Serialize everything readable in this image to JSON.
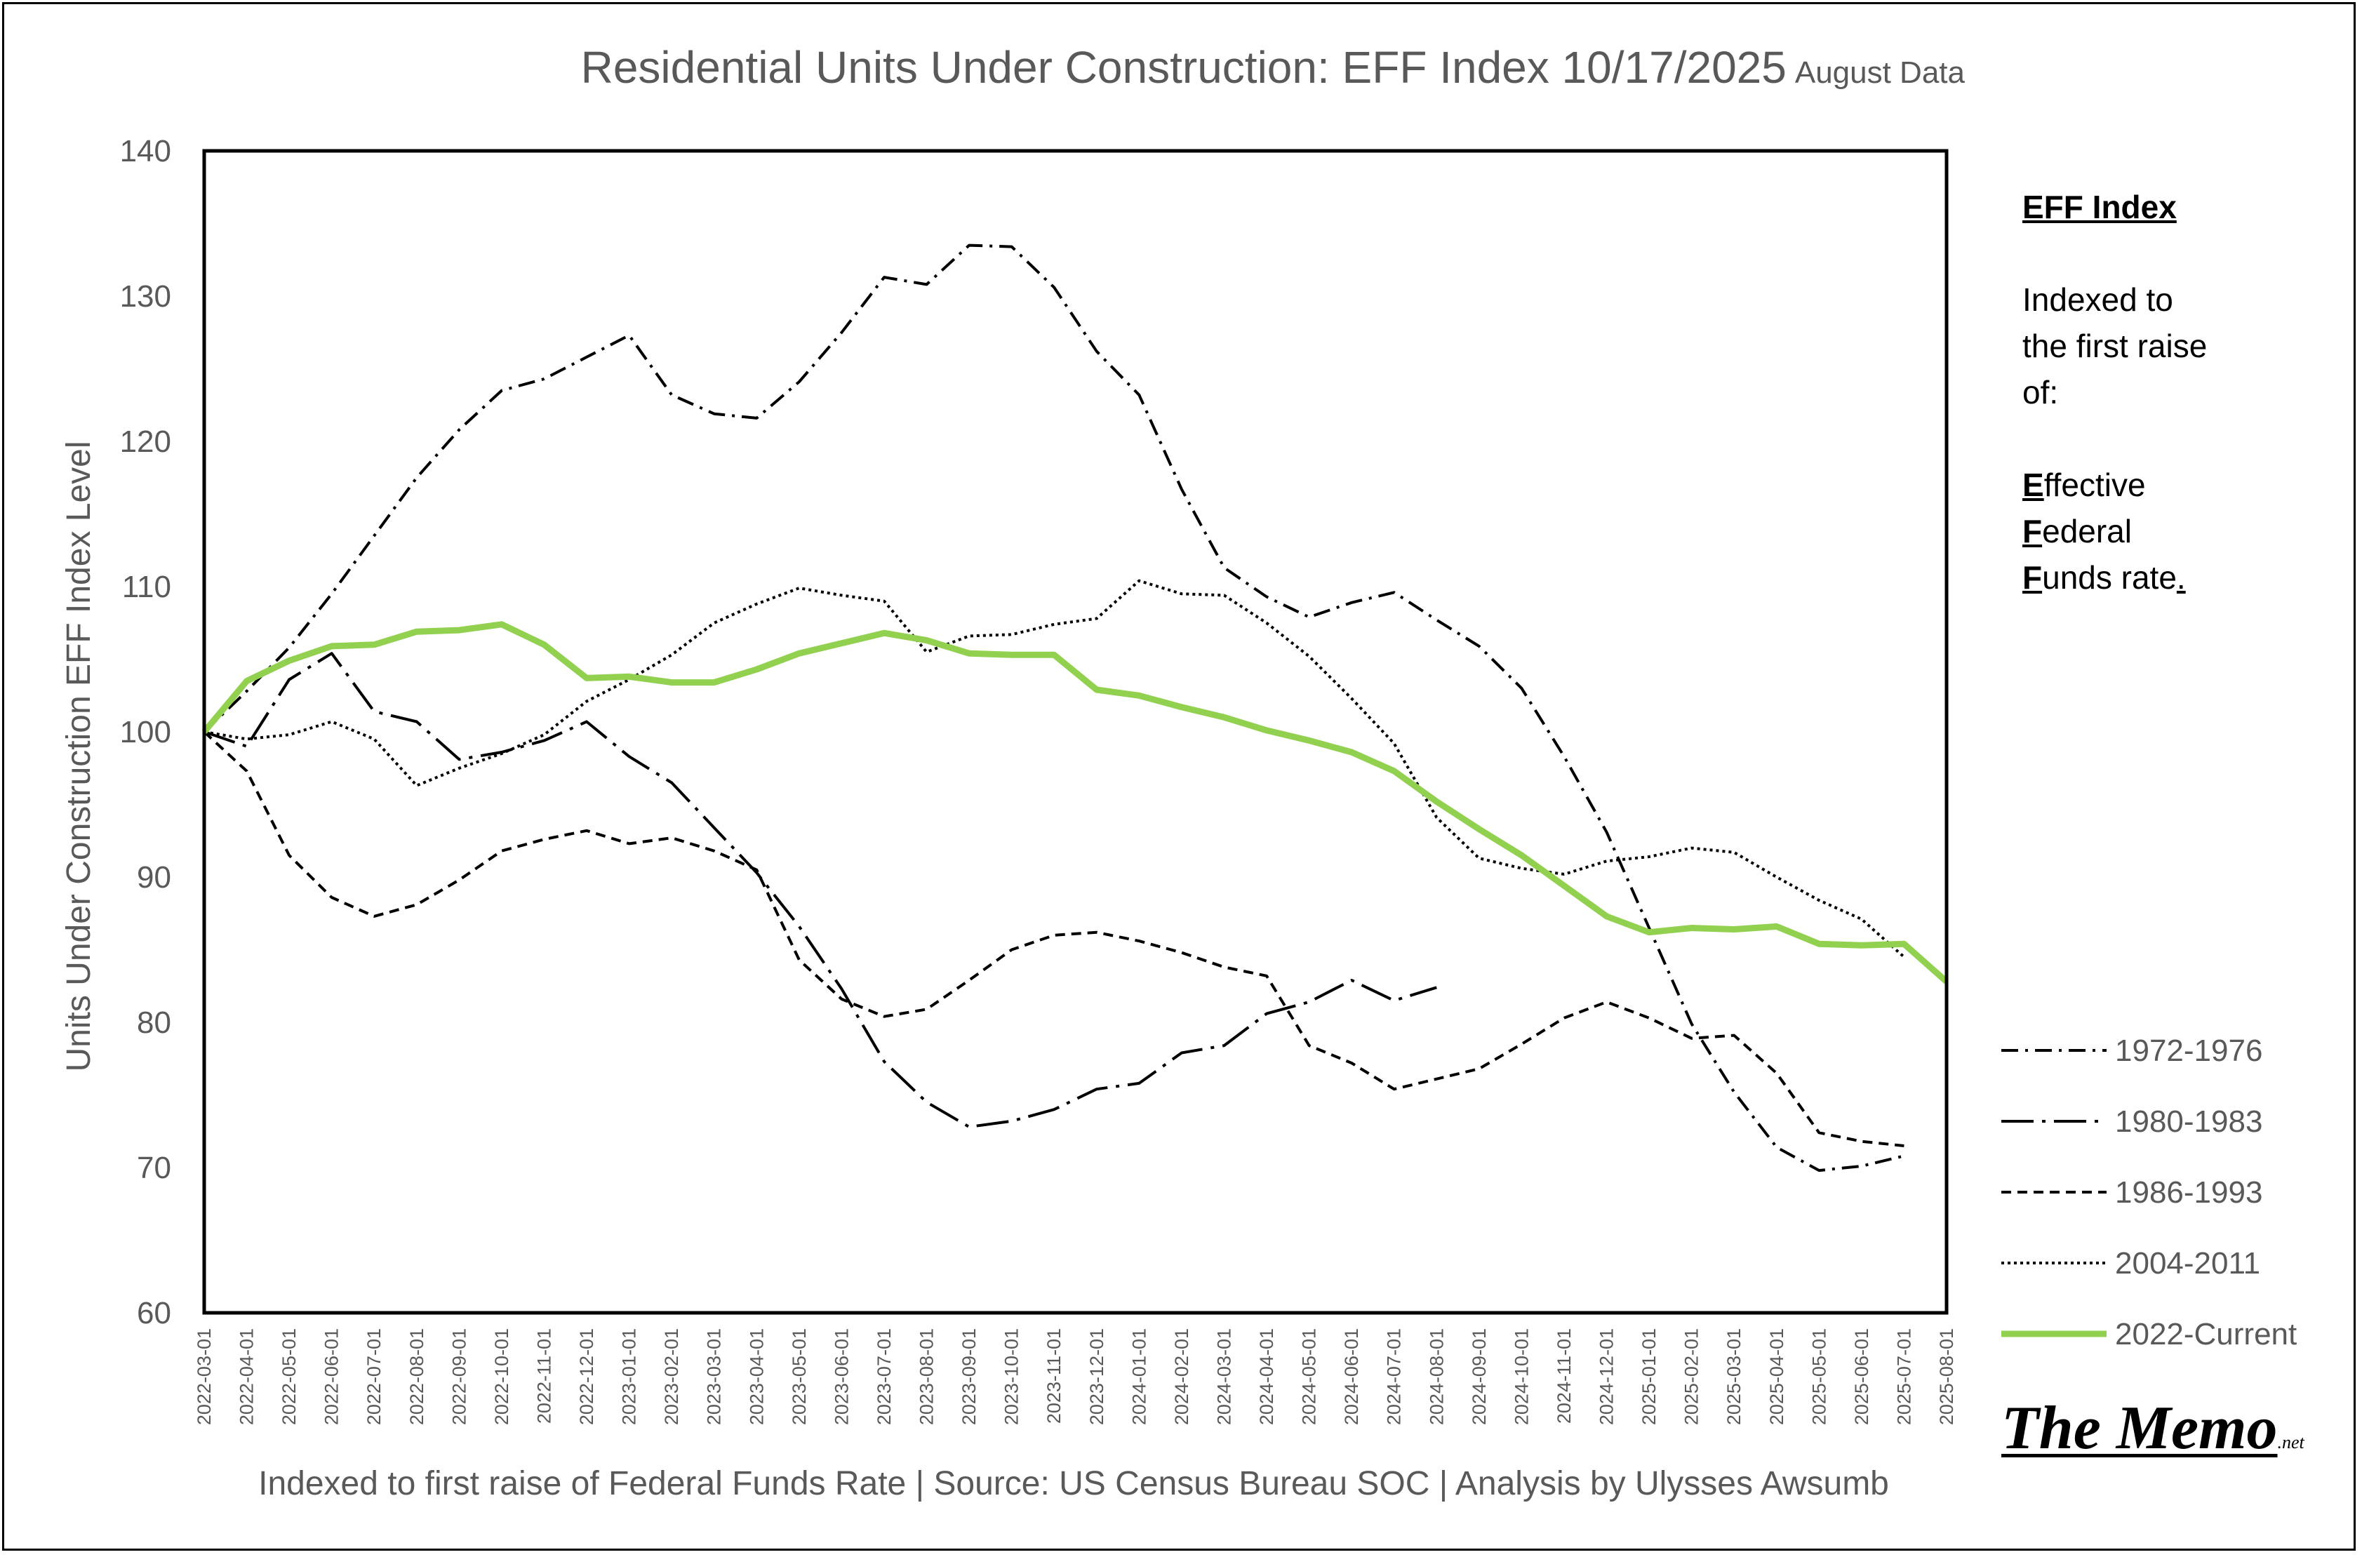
{
  "chart_data": {
    "type": "line",
    "title": "Residential Units Under Construction: EFF Index 10/17/2025",
    "subtitle": "August Data",
    "xlabel": "Indexed to first raise of Federal Funds Rate | Source: US Census Bureau SOC | Analysis by Ulysses Awsumb",
    "ylabel": "Units Under Construction EFF Index Level",
    "ylim": [
      60,
      140
    ],
    "yticks": [
      60,
      70,
      80,
      90,
      100,
      110,
      120,
      130,
      140
    ],
    "grid": false,
    "legend_position": "right",
    "categories": [
      "2022-03-01",
      "2022-04-01",
      "2022-05-01",
      "2022-06-01",
      "2022-07-01",
      "2022-08-01",
      "2022-09-01",
      "2022-10-01",
      "2022-11-01",
      "2022-12-01",
      "2023-01-01",
      "2023-02-01",
      "2023-03-01",
      "2023-04-01",
      "2023-05-01",
      "2023-06-01",
      "2023-07-01",
      "2023-08-01",
      "2023-09-01",
      "2023-10-01",
      "2023-11-01",
      "2023-12-01",
      "2024-01-01",
      "2024-02-01",
      "2024-03-01",
      "2024-04-01",
      "2024-05-01",
      "2024-06-01",
      "2024-07-01",
      "2024-08-01",
      "2024-09-01",
      "2024-10-01",
      "2024-11-01",
      "2024-12-01",
      "2025-01-01",
      "2025-02-01",
      "2025-03-01",
      "2025-04-01",
      "2025-05-01",
      "2025-06-01",
      "2025-07-01",
      "2025-08-01"
    ],
    "series": [
      {
        "name": "1972-1976",
        "style": "dashdot",
        "color": "#000000",
        "values": [
          100,
          102.8,
          105.8,
          109.5,
          113.5,
          117.5,
          120.8,
          123.5,
          124.3,
          125.8,
          127.3,
          123.2,
          121.9,
          121.6,
          124.1,
          127.5,
          131.3,
          130.8,
          133.5,
          133.4,
          130.6,
          126.2,
          123.2,
          116.7,
          111.3,
          109.3,
          107.9,
          108.9,
          109.6,
          107.7,
          105.9,
          103.0,
          98.3,
          93.1,
          86.5,
          79.9,
          75.2,
          71.4,
          69.8,
          70.1,
          70.8,
          null
        ]
      },
      {
        "name": "1980-1983",
        "style": "longdashdot",
        "color": "#000000",
        "values": [
          100,
          99.0,
          103.6,
          105.4,
          101.4,
          100.7,
          98.1,
          98.6,
          99.4,
          100.7,
          98.3,
          96.5,
          93.4,
          90.3,
          86.6,
          82.3,
          77.3,
          74.5,
          72.8,
          73.2,
          74.0,
          75.4,
          75.8,
          77.9,
          78.4,
          80.6,
          81.4,
          82.9,
          81.5,
          82.4,
          null,
          null,
          null,
          null,
          null,
          null,
          null,
          null,
          null,
          null,
          null,
          null
        ]
      },
      {
        "name": "1986-1993",
        "style": "dashed",
        "color": "#000000",
        "values": [
          100,
          97.3,
          91.5,
          88.6,
          87.3,
          88.1,
          89.8,
          91.8,
          92.6,
          93.2,
          92.3,
          92.7,
          91.8,
          90.5,
          84.3,
          81.6,
          80.4,
          80.9,
          82.9,
          85.0,
          86.0,
          86.2,
          85.6,
          84.8,
          83.8,
          83.2,
          78.4,
          77.2,
          75.4,
          76.1,
          76.8,
          78.5,
          80.3,
          81.4,
          80.3,
          78.9,
          79.1,
          76.5,
          72.4,
          71.8,
          71.5,
          null
        ]
      },
      {
        "name": "2004-2011",
        "style": "dotted",
        "color": "#000000",
        "values": [
          100,
          99.5,
          99.8,
          100.7,
          99.5,
          96.3,
          97.5,
          98.5,
          99.8,
          102.1,
          103.6,
          105.3,
          107.5,
          108.8,
          109.9,
          109.4,
          109.0,
          105.5,
          106.6,
          106.7,
          107.4,
          107.8,
          110.4,
          109.5,
          109.4,
          107.5,
          105.2,
          102.3,
          99.2,
          94.1,
          91.3,
          90.6,
          90.2,
          91.1,
          91.4,
          92.0,
          91.7,
          90.0,
          88.4,
          87.1,
          84.5,
          null
        ]
      },
      {
        "name": "2022-Current",
        "style": "solid",
        "color": "#92D050",
        "values": [
          100,
          103.5,
          104.9,
          105.9,
          106.0,
          106.9,
          107.0,
          107.4,
          106.0,
          103.7,
          103.8,
          103.4,
          103.4,
          104.3,
          105.4,
          106.1,
          106.8,
          106.3,
          105.4,
          105.3,
          105.3,
          102.9,
          102.5,
          101.7,
          101.0,
          100.1,
          99.4,
          98.6,
          97.3,
          95.2,
          93.3,
          91.5,
          89.4,
          87.3,
          86.2,
          86.5,
          86.4,
          86.6,
          85.4,
          85.3,
          85.4,
          82.8
        ]
      }
    ]
  },
  "side_panel": {
    "title": "EFF Index",
    "desc_lines": [
      "Indexed to",
      "the first raise",
      "of:"
    ],
    "eff_lines": [
      {
        "initial": "E",
        "rest": "ffective"
      },
      {
        "initial": "F",
        "rest": "ederal"
      },
      {
        "initial": "F",
        "rest": "unds rate",
        "tail": "."
      }
    ]
  },
  "logo": {
    "main": "The Memo",
    "suffix": ".net"
  }
}
